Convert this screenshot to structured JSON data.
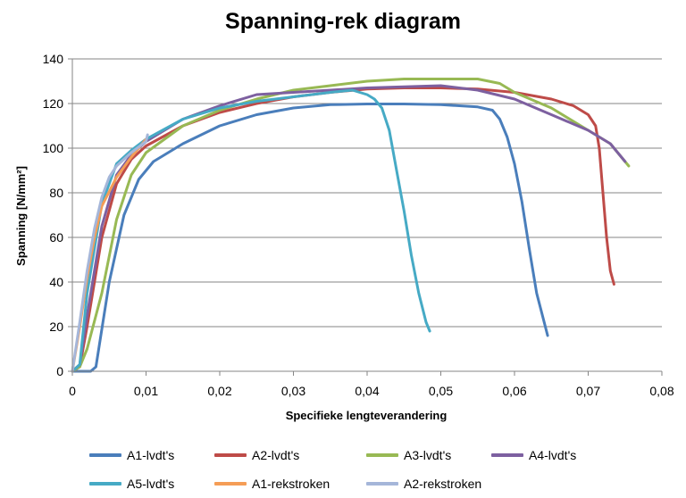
{
  "chart_data": {
    "type": "line",
    "title": "Spanning-rek diagram",
    "xlabel": "Specifieke lengteverandering",
    "ylabel": "Spanning [N/mm²]",
    "xlim": [
      0,
      0.08
    ],
    "ylim": [
      0,
      140
    ],
    "x_ticks": [
      "0",
      "0,01",
      "0,02",
      "0,03",
      "0,04",
      "0,05",
      "0,06",
      "0,07",
      "0,08"
    ],
    "y_ticks": [
      "0",
      "20",
      "40",
      "60",
      "80",
      "100",
      "120",
      "140"
    ],
    "grid": "horizontal",
    "legend_position": "bottom",
    "series": [
      {
        "name": "A1-lvdt's",
        "color": "#4a7ebb",
        "x": [
          0,
          0.0025,
          0.0032,
          0.005,
          0.007,
          0.009,
          0.011,
          0.015,
          0.02,
          0.025,
          0.03,
          0.035,
          0.04,
          0.045,
          0.05,
          0.055,
          0.057,
          0.058,
          0.059,
          0.06,
          0.061,
          0.062,
          0.063,
          0.0645
        ],
        "y": [
          0,
          0,
          2,
          40,
          70,
          86,
          94,
          102,
          110,
          115,
          118,
          119.5,
          119.8,
          119.8,
          119.5,
          118.5,
          117,
          113,
          105,
          93,
          76,
          55,
          35,
          16
        ]
      },
      {
        "name": "A2-lvdt's",
        "color": "#be4b48",
        "x": [
          0,
          0.001,
          0.002,
          0.004,
          0.006,
          0.008,
          0.01,
          0.015,
          0.02,
          0.025,
          0.03,
          0.035,
          0.04,
          0.045,
          0.05,
          0.055,
          0.06,
          0.065,
          0.068,
          0.07,
          0.071,
          0.0715,
          0.072,
          0.0725,
          0.073,
          0.0735
        ],
        "y": [
          0,
          2,
          20,
          60,
          84,
          95,
          101,
          110,
          116,
          120,
          123,
          125,
          126.5,
          127,
          127,
          126.5,
          125,
          122,
          119,
          115,
          110,
          100,
          80,
          60,
          45,
          39
        ]
      },
      {
        "name": "A3-lvdt's",
        "color": "#98b954",
        "x": [
          0,
          0.001,
          0.002,
          0.004,
          0.006,
          0.008,
          0.01,
          0.015,
          0.02,
          0.025,
          0.03,
          0.035,
          0.04,
          0.045,
          0.05,
          0.055,
          0.058,
          0.06,
          0.065,
          0.07,
          0.073,
          0.0745,
          0.0755
        ],
        "y": [
          0,
          2,
          10,
          35,
          68,
          88,
          98,
          110,
          117,
          122,
          126,
          128,
          130,
          131,
          131,
          131,
          129,
          125,
          118,
          108,
          102,
          96,
          92
        ]
      },
      {
        "name": "A4-lvdt's",
        "color": "#7d60a0",
        "x": [
          0,
          0.001,
          0.002,
          0.004,
          0.006,
          0.008,
          0.01,
          0.015,
          0.02,
          0.025,
          0.03,
          0.035,
          0.04,
          0.045,
          0.05,
          0.055,
          0.06,
          0.065,
          0.07,
          0.073,
          0.075
        ],
        "y": [
          0,
          3,
          25,
          65,
          88,
          97,
          103,
          113,
          119,
          124,
          125,
          126,
          127,
          127.5,
          128,
          126,
          122,
          115,
          108,
          102,
          94
        ]
      },
      {
        "name": "A5-lvdt's",
        "color": "#46aac5",
        "x": [
          0,
          0.001,
          0.002,
          0.004,
          0.006,
          0.008,
          0.01,
          0.015,
          0.02,
          0.025,
          0.03,
          0.035,
          0.038,
          0.04,
          0.041,
          0.042,
          0.043,
          0.044,
          0.045,
          0.046,
          0.047,
          0.048,
          0.0485
        ],
        "y": [
          0,
          3,
          35,
          75,
          93,
          99,
          104,
          113,
          118,
          121,
          123,
          125,
          126,
          124,
          122,
          118,
          108,
          90,
          72,
          52,
          35,
          22,
          18
        ]
      },
      {
        "name": "A1-rekstroken",
        "color": "#f59d56",
        "x": [
          0,
          0.001,
          0.002,
          0.003,
          0.004,
          0.006,
          0.008,
          0.01
        ],
        "y": [
          0,
          20,
          42,
          60,
          74,
          87,
          96,
          104
        ]
      },
      {
        "name": "A2-rekstroken",
        "color": "#a5b6d9",
        "x": [
          0,
          0.001,
          0.002,
          0.003,
          0.004,
          0.005,
          0.006,
          0.008,
          0.01,
          0.0102
        ],
        "y": [
          0,
          22,
          45,
          64,
          78,
          87,
          92,
          98,
          103,
          106
        ]
      }
    ]
  }
}
